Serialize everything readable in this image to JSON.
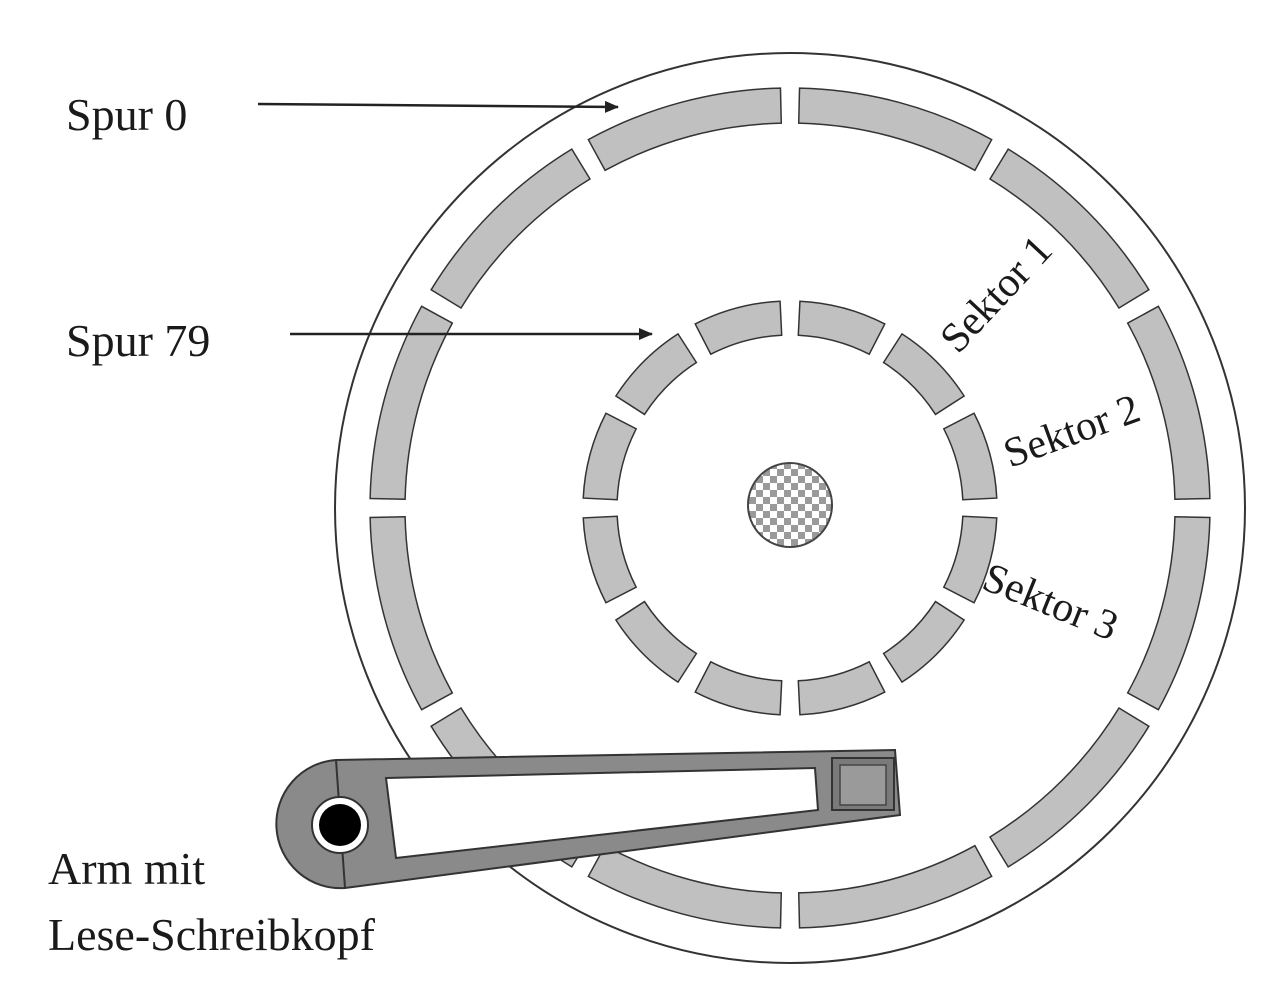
{
  "labels": {
    "spur_0": "Spur 0",
    "spur_79": "Spur 79",
    "sektor_1": "Sektor 1",
    "sektor_2": "Sektor 2",
    "sektor_3": "Sektor 3",
    "arm_line1": "Arm mit",
    "arm_line2": "Lese-Schreibkopf"
  },
  "outer_track": {
    "sector_count": 12
  },
  "inner_track": {
    "sector_count": 12
  },
  "colors": {
    "sector_fill": "#c0c0c0",
    "arm_fill": "#8a8a8a",
    "line": "#333333",
    "background": "#ffffff"
  }
}
